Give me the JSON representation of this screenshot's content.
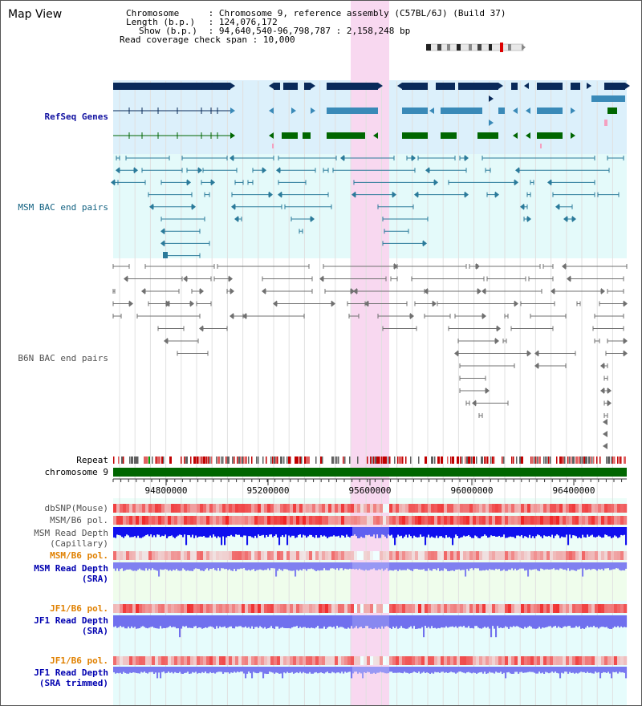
{
  "view": {
    "title": "Map View",
    "info": {
      "chromosome_key": "Chromosome",
      "chromosome_val": "Chromosome 9, reference assembly (C57BL/6J) (Build 37)",
      "length_key": "Length (b.p.)",
      "length_val": "124,076,172",
      "show_key": "Show (b.p.)",
      "show_val": "94,640,540-96,798,787 : 2,158,248 bp",
      "span_key": "Read coverage check span",
      "span_val": "10,000"
    }
  },
  "tracks": {
    "refseq": "RefSeq Genes",
    "msm_bac": "MSM BAC end pairs",
    "b6n_bac": "B6N BAC end pairs",
    "repeat": "Repeat",
    "chromosome": "chromosome 9",
    "dbsnp": "dbSNP(Mouse)",
    "msm_pol1": "MSM/B6 pol.",
    "msm_depth_cap_1": "MSM Read Depth",
    "msm_depth_cap_2": "(Capillary)",
    "msm_pol2": "MSM/B6 pol.",
    "msm_depth_sra_1": "MSM Read Depth",
    "msm_depth_sra_2": "(SRA)",
    "jf1_pol1": "JF1/B6 pol.",
    "jf1_depth_sra_1": "JF1 Read Depth",
    "jf1_depth_sra_2": "(SRA)",
    "jf1_pol2": "JF1/B6 pol.",
    "jf1_depth_trim_1": "JF1 Read Depth",
    "jf1_depth_trim_2": "(SRA trimmed)"
  },
  "axis": {
    "ticks": [
      "94800000",
      "95200000",
      "95600000",
      "96000000",
      "96400000"
    ]
  },
  "colors": {
    "refseq_label": "#1010a0",
    "msm_label": "#106080",
    "b6n_label": "#505050",
    "orange_label": "#e08000",
    "blue_label": "#0000b0",
    "gene_dark": "#0a2a5a",
    "gene_mid": "#3a8ab8",
    "gene_green": "#006600",
    "highlight": "#f8d8f0",
    "chrom_bar": "#006600"
  }
}
